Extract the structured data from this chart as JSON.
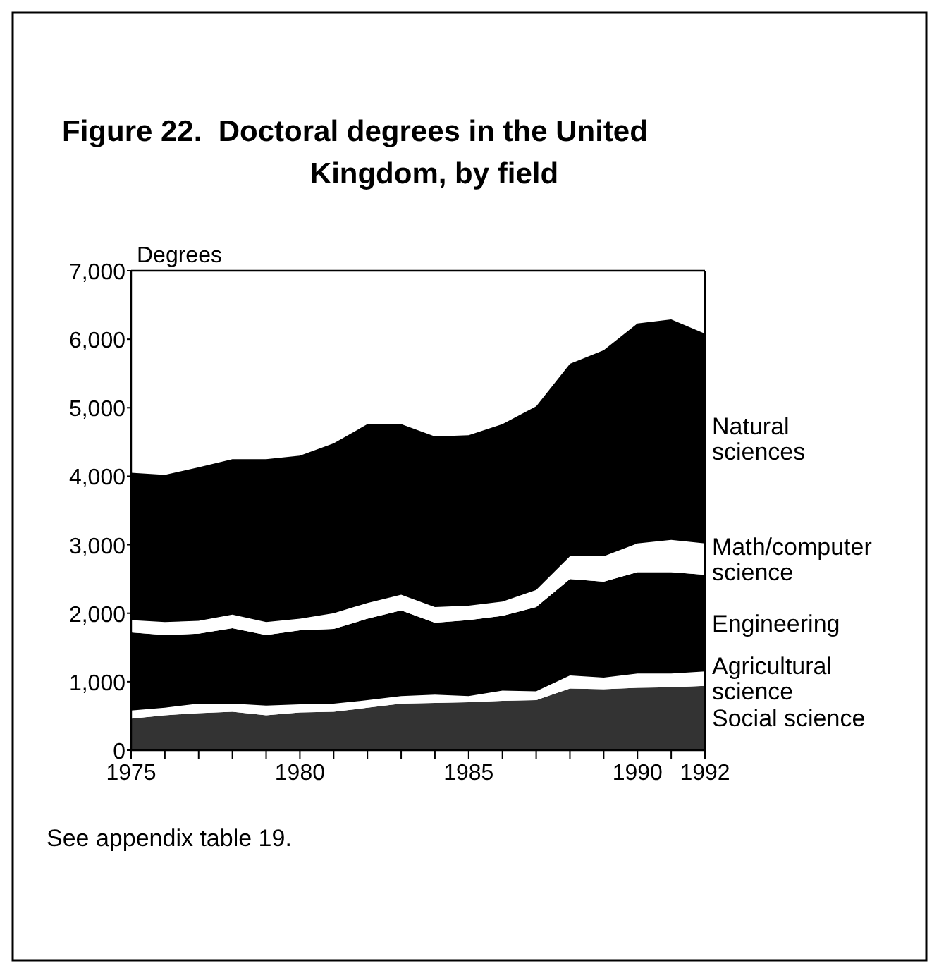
{
  "chart_data": {
    "type": "area",
    "stacked": true,
    "title": "Figure 22.  Doctoral degrees in the United Kingdom, by field",
    "ylabel": "Degrees",
    "x": [
      1975,
      1976,
      1977,
      1978,
      1979,
      1980,
      1981,
      1982,
      1983,
      1984,
      1985,
      1986,
      1987,
      1988,
      1989,
      1990,
      1991,
      1992
    ],
    "xlim": [
      1975,
      1992
    ],
    "xticks": [
      1975,
      {
        "value": 1976,
        "label": null
      },
      {
        "value": 1977,
        "label": null
      },
      {
        "value": 1978,
        "label": null
      },
      {
        "value": 1979,
        "label": null
      },
      1980,
      {
        "value": 1981,
        "label": null
      },
      {
        "value": 1982,
        "label": null
      },
      {
        "value": 1983,
        "label": null
      },
      {
        "value": 1984,
        "label": null
      },
      1985,
      {
        "value": 1986,
        "label": null
      },
      {
        "value": 1987,
        "label": null
      },
      {
        "value": 1988,
        "label": null
      },
      {
        "value": 1989,
        "label": null
      },
      1990,
      {
        "value": 1991,
        "label": null
      },
      1992
    ],
    "ylim": [
      0,
      7000
    ],
    "yticks": [
      0,
      {
        "value": 1000,
        "label": "1,000"
      },
      {
        "value": 2000,
        "label": "2,000"
      },
      {
        "value": 3000,
        "label": "3,000"
      },
      {
        "value": 4000,
        "label": "4,000"
      },
      {
        "value": 5000,
        "label": "5,000"
      },
      {
        "value": 6000,
        "label": "6,000"
      },
      {
        "value": 7000,
        "label": "7,000"
      }
    ],
    "series": [
      {
        "name": "Social science",
        "color": "#333333",
        "values": [
          460,
          510,
          540,
          560,
          510,
          550,
          560,
          620,
          680,
          690,
          700,
          720,
          730,
          900,
          890,
          910,
          920,
          940
        ]
      },
      {
        "name": "Agricultural science",
        "color": "#ffffff",
        "values": [
          120,
          110,
          140,
          120,
          140,
          120,
          120,
          110,
          110,
          120,
          90,
          150,
          130,
          190,
          170,
          210,
          200,
          210
        ]
      },
      {
        "name": "Engineering",
        "color": "#000000",
        "values": [
          1140,
          1060,
          1020,
          1100,
          1030,
          1080,
          1090,
          1190,
          1250,
          1050,
          1110,
          1090,
          1230,
          1410,
          1400,
          1480,
          1480,
          1410
        ]
      },
      {
        "name": "Math/computer science",
        "color": "#ffffff",
        "values": [
          180,
          190,
          190,
          200,
          190,
          170,
          230,
          230,
          230,
          230,
          210,
          210,
          250,
          330,
          370,
          420,
          470,
          460
        ]
      },
      {
        "name": "Natural sciences",
        "color": "#000000",
        "values": [
          2150,
          2150,
          2240,
          2270,
          2380,
          2380,
          2480,
          2610,
          2490,
          2490,
          2490,
          2590,
          2680,
          2810,
          3010,
          3210,
          3220,
          3060
        ]
      }
    ],
    "grid": false,
    "legend": "right",
    "annotations": [
      "See appendix table 19."
    ]
  }
}
